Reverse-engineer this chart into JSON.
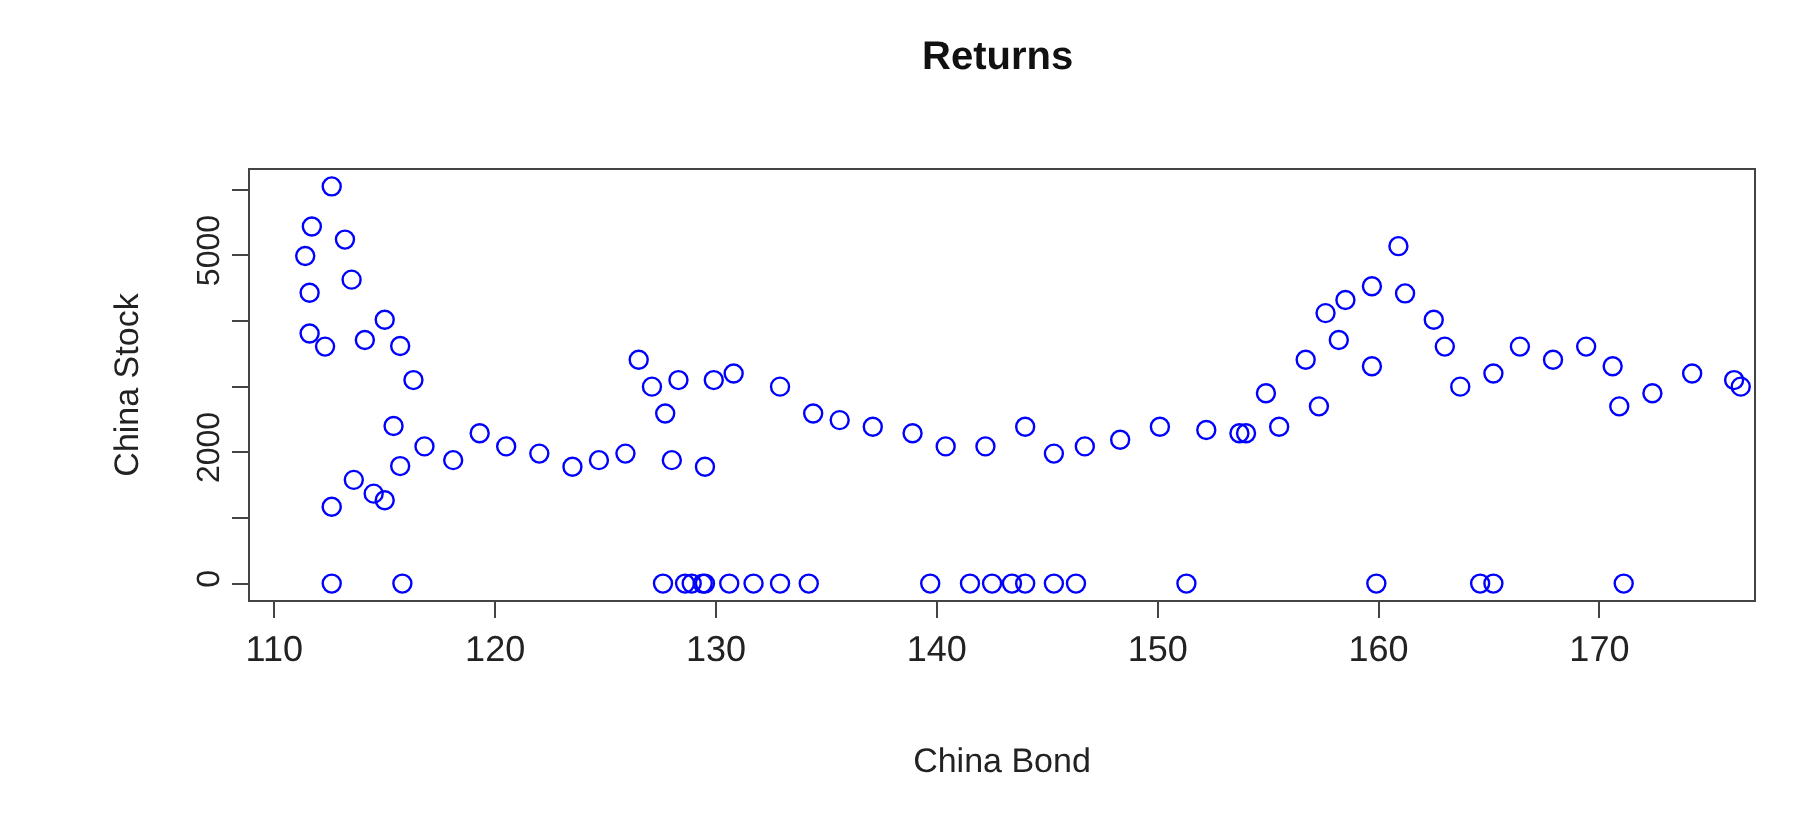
{
  "chart_data": {
    "type": "scatter",
    "title": "Returns",
    "xlabel": "China Bond",
    "ylabel": "China Stock",
    "marker": "circle",
    "grid": false,
    "xlim": [
      108.9,
      177
    ],
    "xticks": [
      110,
      120,
      130,
      140,
      150,
      160,
      170
    ],
    "ylim": [
      -250,
      6300
    ],
    "yticks": [
      0,
      {
        "value": 1000,
        "label": null
      },
      2000,
      {
        "value": 3000,
        "label": null
      },
      {
        "value": 4000,
        "label": null
      },
      5000,
      {
        "value": 6000,
        "label": null
      }
    ],
    "series": [
      {
        "color": "#0000ff",
        "x": [
          112.6,
          111.7,
          111.4,
          111.6,
          111.6,
          112.3,
          113.2,
          113.5,
          114.1,
          115.0,
          115.7,
          116.3,
          115.4,
          115.7,
          114.5,
          113.6,
          112.6,
          115.0,
          116.8,
          118.1,
          119.3,
          120.5,
          122.0,
          123.5,
          124.7,
          125.9,
          126.5,
          127.1,
          127.7,
          128.0,
          129.5,
          129.9,
          128.3,
          130.8,
          132.9,
          134.4,
          135.6,
          137.1,
          138.9,
          140.4,
          142.2,
          144.0,
          145.3,
          146.7,
          148.3,
          150.1,
          152.2,
          153.7,
          154.9,
          154.0,
          155.5,
          157.3,
          156.7,
          158.2,
          159.7,
          157.6,
          158.5,
          159.7,
          160.9,
          161.2,
          162.5,
          163.0,
          163.7,
          165.2,
          166.4,
          167.9,
          169.4,
          170.6,
          170.9,
          172.4,
          174.2,
          176.1,
          176.4,
          112.6,
          115.8,
          127.6,
          128.6,
          129.4,
          128.9,
          129.5,
          130.6,
          131.7,
          132.9,
          134.2,
          139.7,
          141.5,
          142.5,
          143.4,
          144.0,
          145.3,
          146.3,
          151.3,
          159.9,
          164.6,
          165.2,
          171.1
        ],
        "values": [
          6050,
          5440,
          4990,
          4430,
          3810,
          3610,
          5240,
          4630,
          3710,
          4020,
          3620,
          3100,
          2400,
          1790,
          1370,
          1580,
          1170,
          1270,
          2090,
          1880,
          2290,
          2090,
          1980,
          1780,
          1880,
          1980,
          3410,
          3000,
          2590,
          1880,
          1780,
          3100,
          3100,
          3200,
          3000,
          2590,
          2490,
          2390,
          2290,
          2090,
          2090,
          2390,
          1980,
          2090,
          2190,
          2390,
          2340,
          2290,
          2900,
          2290,
          2390,
          2700,
          3410,
          3710,
          3310,
          4120,
          4320,
          4530,
          5140,
          4420,
          4020,
          3610,
          3000,
          3200,
          3610,
          3410,
          3610,
          3310,
          2700,
          2900,
          3200,
          3100,
          3000,
          0,
          0,
          0,
          0,
          0,
          0,
          0,
          0,
          0,
          0,
          0,
          0,
          0,
          0,
          0,
          0,
          0,
          0,
          0,
          0,
          0,
          0,
          0
        ]
      }
    ]
  }
}
